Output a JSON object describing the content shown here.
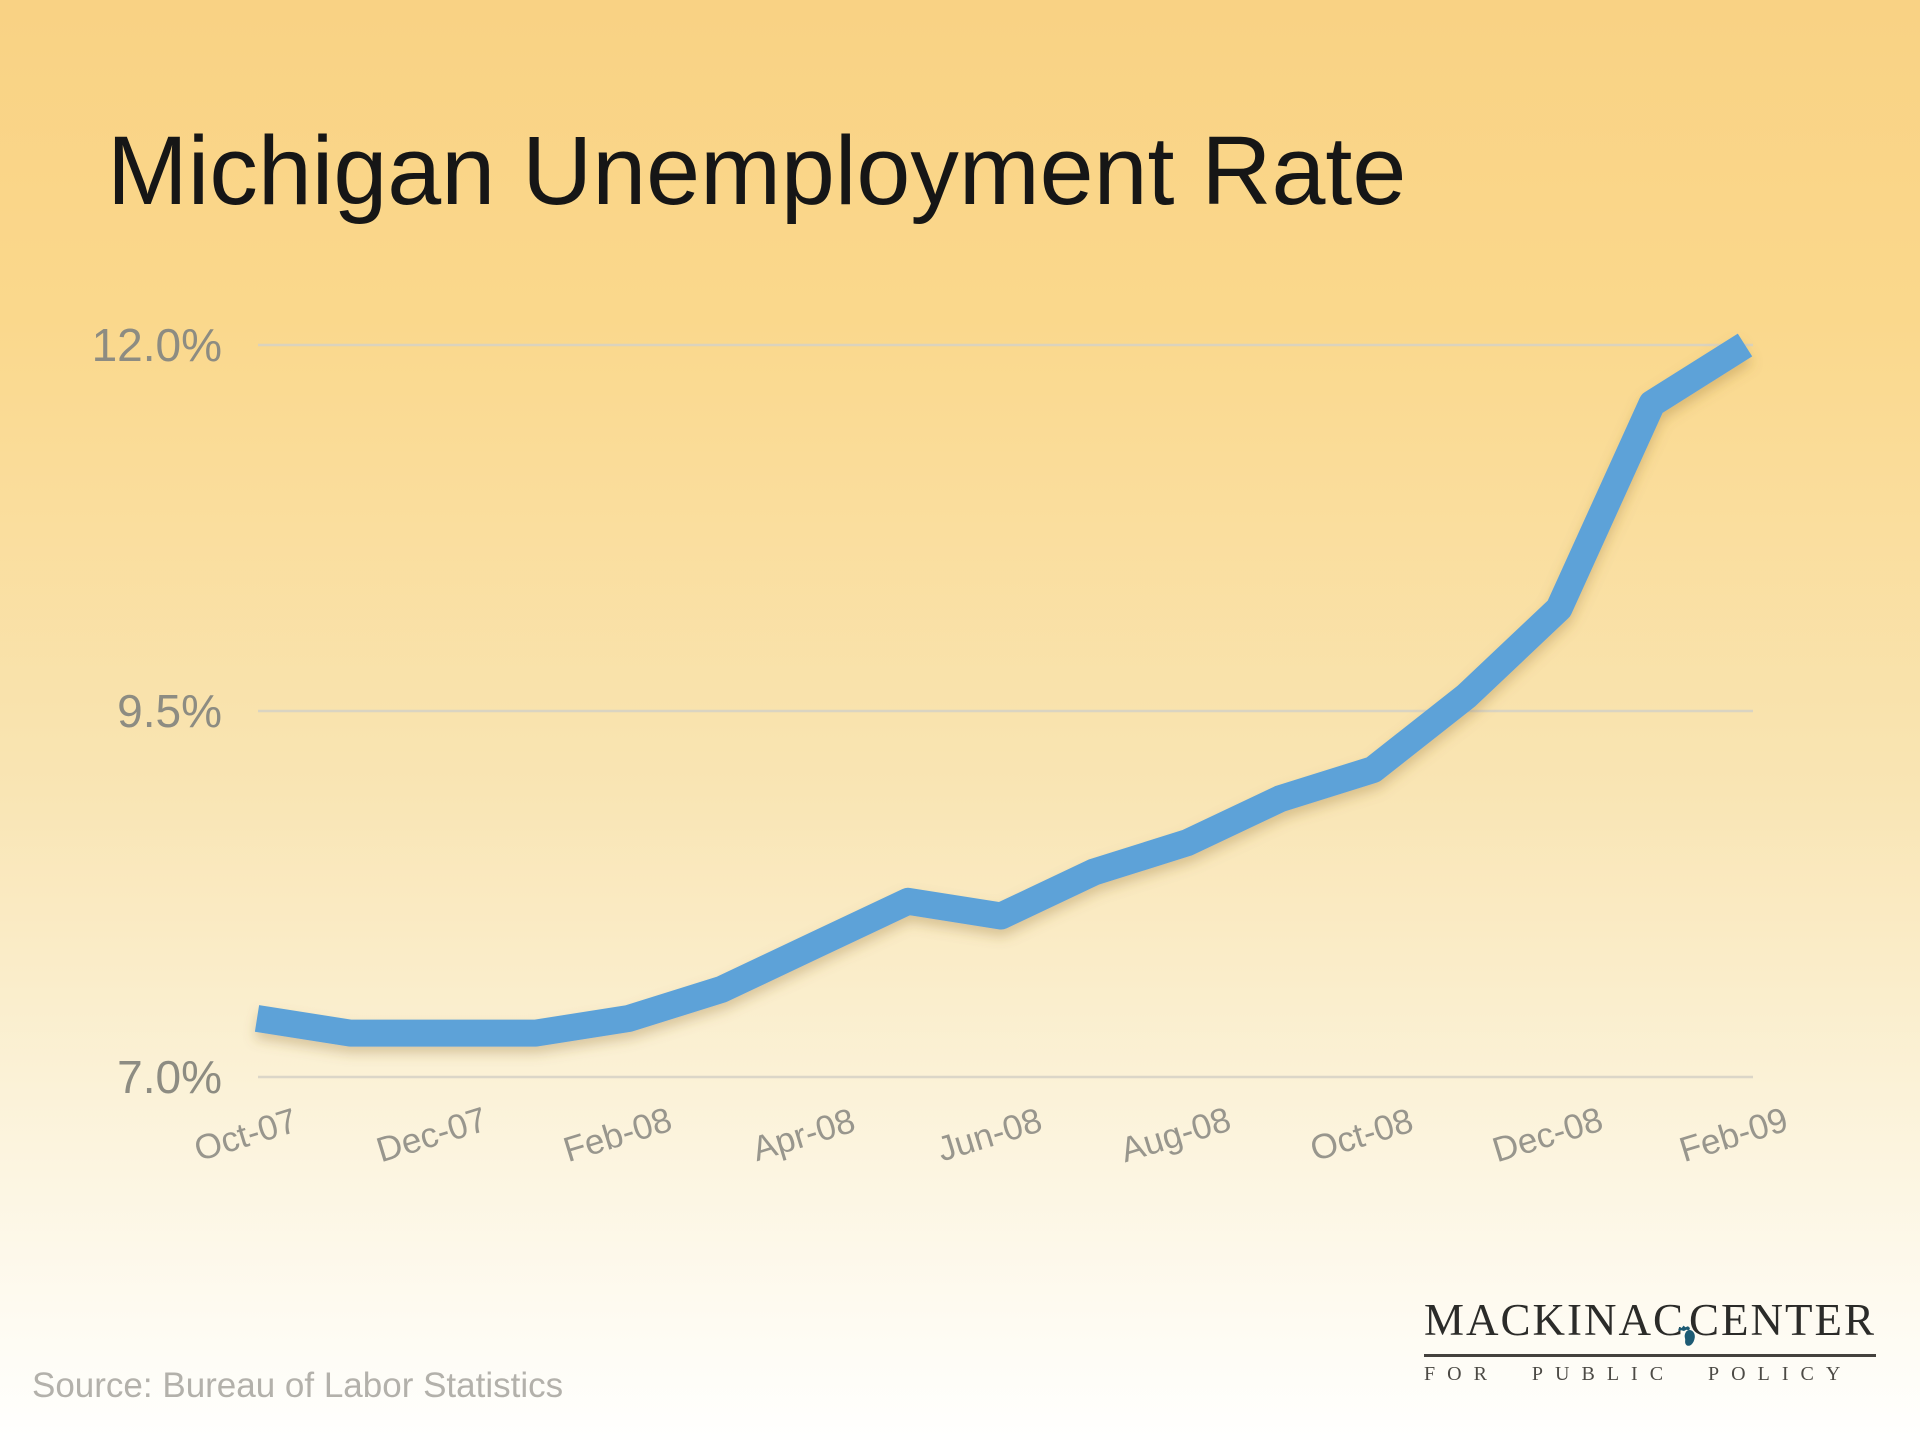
{
  "title": "Michigan Unemployment Rate",
  "source": "Source: Bureau of Labor Statistics",
  "logo": {
    "name_left": "MACKINAC",
    "name_right": "CENTER",
    "tagline": "FOR PUBLIC POLICY",
    "icon": "michigan-state-silhouette"
  },
  "colors": {
    "line": "#5da2d8",
    "line_shadow": "#8a6a2f",
    "grid": "#d5d1c6",
    "axis_text": "#8d8c82",
    "x_axis_text": "#98968d",
    "title_text": "#161616",
    "source_text": "#b3b1ab",
    "logo_navy": "#1d5b74",
    "bg_top": "#f9d284",
    "bg_bottom": "#ffffff"
  },
  "chart_data": {
    "type": "line",
    "title": "Michigan Unemployment Rate",
    "x": [
      "Oct-07",
      "Nov-07",
      "Dec-07",
      "Jan-08",
      "Feb-08",
      "Mar-08",
      "Apr-08",
      "May-08",
      "Jun-08",
      "Jul-08",
      "Aug-08",
      "Sep-08",
      "Oct-08",
      "Nov-08",
      "Dec-08",
      "Jan-09",
      "Feb-09"
    ],
    "values": [
      7.4,
      7.3,
      7.3,
      7.3,
      7.4,
      7.6,
      7.9,
      8.2,
      8.1,
      8.4,
      8.6,
      8.9,
      9.1,
      9.6,
      10.2,
      11.6,
      12.0
    ],
    "x_tick_labels": [
      "Oct-07",
      "Dec-07",
      "Feb-08",
      "Apr-08",
      "Jun-08",
      "Aug-08",
      "Oct-08",
      "Dec-08",
      "Feb-09"
    ],
    "y_ticks": [
      7.0,
      9.5,
      12.0
    ],
    "y_tick_labels": [
      "7.0%",
      "9.5%",
      "12.0%"
    ],
    "ylim": [
      7.0,
      12.0
    ],
    "xlabel": "",
    "ylabel": "",
    "grid": "horizontal",
    "legend": "none"
  }
}
